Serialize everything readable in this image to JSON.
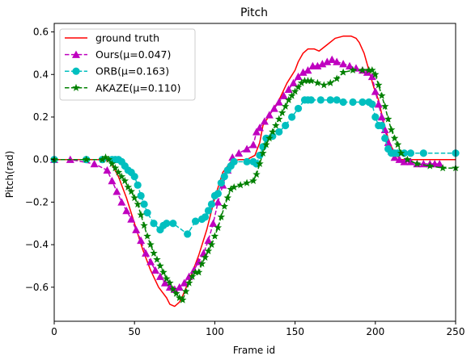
{
  "chart_data": {
    "type": "line",
    "title": "Pitch",
    "xlabel": "Frame id",
    "ylabel": "Pitch(rad)",
    "xlim": [
      0,
      250
    ],
    "ylim": [
      -0.76,
      0.64
    ],
    "xticks": [
      0,
      50,
      100,
      150,
      200,
      250
    ],
    "yticks": [
      -0.6,
      -0.4,
      -0.2,
      0.0,
      0.2,
      0.4,
      0.6
    ],
    "xtick_labels": [
      "0",
      "50",
      "100",
      "150",
      "200",
      "250"
    ],
    "ytick_labels": [
      "−0.6",
      "−0.4",
      "−0.2",
      "0.0",
      "0.2",
      "0.4",
      "0.6"
    ],
    "grid": false,
    "legend_position": "upper-left",
    "series": [
      {
        "name": "ground truth",
        "color": "#ff0000",
        "linestyle": "solid",
        "marker": "none",
        "x": [
          0,
          20,
          30,
          35,
          40,
          45,
          50,
          55,
          60,
          65,
          70,
          72,
          75,
          78,
          80,
          85,
          90,
          95,
          100,
          105,
          110,
          115,
          120,
          125,
          128,
          130,
          135,
          140,
          145,
          150,
          152,
          155,
          158,
          162,
          165,
          170,
          175,
          180,
          185,
          188,
          190,
          193,
          196,
          199,
          202,
          205,
          208,
          210,
          213,
          216,
          220,
          230,
          250
        ],
        "y": [
          0,
          0,
          0,
          -0.01,
          -0.08,
          -0.18,
          -0.3,
          -0.42,
          -0.52,
          -0.6,
          -0.65,
          -0.68,
          -0.69,
          -0.67,
          -0.64,
          -0.55,
          -0.45,
          -0.33,
          -0.18,
          -0.06,
          -0.01,
          0,
          0,
          0.02,
          0.08,
          0.16,
          0.22,
          0.28,
          0.36,
          0.42,
          0.46,
          0.5,
          0.52,
          0.52,
          0.51,
          0.54,
          0.57,
          0.58,
          0.58,
          0.57,
          0.55,
          0.5,
          0.42,
          0.34,
          0.28,
          0.18,
          0.1,
          0.06,
          0.02,
          0,
          0,
          0,
          0
        ]
      },
      {
        "name": "Ours(μ=0.047)",
        "color": "#bf00bf",
        "linestyle": "dashed",
        "marker": "triangle",
        "x": [
          0,
          10,
          25,
          33,
          36,
          39,
          42,
          45,
          48,
          51,
          54,
          57,
          60,
          63,
          66,
          69,
          72,
          75,
          78,
          81,
          84,
          87,
          90,
          93,
          96,
          99,
          102,
          105,
          108,
          111,
          115,
          120,
          124,
          126,
          128,
          131,
          134,
          137,
          140,
          143,
          146,
          149,
          152,
          155,
          158,
          161,
          164,
          167,
          170,
          173,
          176,
          180,
          184,
          188,
          192,
          195,
          198,
          200,
          202,
          204,
          206,
          208,
          210,
          212,
          215,
          218,
          222,
          226,
          230,
          234,
          237,
          240
        ],
        "y": [
          0,
          0,
          -0.02,
          -0.05,
          -0.1,
          -0.15,
          -0.2,
          -0.24,
          -0.28,
          -0.33,
          -0.38,
          -0.44,
          -0.48,
          -0.52,
          -0.55,
          -0.58,
          -0.6,
          -0.61,
          -0.6,
          -0.58,
          -0.55,
          -0.52,
          -0.48,
          -0.44,
          -0.38,
          -0.3,
          -0.2,
          -0.12,
          -0.05,
          0.01,
          0.03,
          0.05,
          0.07,
          0.13,
          0.15,
          0.18,
          0.21,
          0.24,
          0.27,
          0.3,
          0.33,
          0.36,
          0.39,
          0.41,
          0.42,
          0.44,
          0.44,
          0.45,
          0.46,
          0.47,
          0.46,
          0.45,
          0.44,
          0.43,
          0.42,
          0.41,
          0.39,
          0.32,
          0.26,
          0.2,
          0.14,
          0.08,
          0.04,
          0.01,
          0,
          -0.01,
          -0.01,
          -0.02,
          -0.02,
          -0.02,
          -0.02,
          -0.02
        ]
      },
      {
        "name": "ORB(μ=0.163)",
        "color": "#00bfbf",
        "linestyle": "dashed",
        "marker": "circle",
        "x": [
          0,
          20,
          30,
          36,
          38,
          40,
          42,
          44,
          46,
          48,
          50,
          52,
          54,
          56,
          58,
          62,
          66,
          68,
          70,
          74,
          83,
          88,
          92,
          94,
          96,
          98,
          100,
          102,
          104,
          106,
          108,
          110,
          112,
          120,
          124,
          126,
          128,
          130,
          132,
          136,
          140,
          144,
          148,
          152,
          156,
          158,
          160,
          166,
          172,
          176,
          180,
          186,
          192,
          196,
          198,
          200,
          202,
          204,
          206,
          208,
          210,
          212,
          214,
          218,
          222,
          230,
          250
        ],
        "y": [
          0,
          0,
          0,
          0,
          0,
          0,
          -0.01,
          -0.03,
          -0.05,
          -0.06,
          -0.08,
          -0.12,
          -0.17,
          -0.21,
          -0.25,
          -0.3,
          -0.33,
          -0.31,
          -0.3,
          -0.3,
          -0.35,
          -0.29,
          -0.28,
          -0.27,
          -0.24,
          -0.21,
          -0.17,
          -0.16,
          -0.11,
          -0.08,
          -0.05,
          -0.03,
          -0.01,
          -0.01,
          -0.01,
          -0.02,
          0.02,
          0.06,
          0.1,
          0.11,
          0.13,
          0.16,
          0.2,
          0.24,
          0.28,
          0.28,
          0.28,
          0.28,
          0.28,
          0.28,
          0.27,
          0.27,
          0.27,
          0.27,
          0.26,
          0.2,
          0.16,
          0.16,
          0.1,
          0.05,
          0.03,
          0.03,
          0.03,
          0.03,
          0.03,
          0.03,
          0.03
        ]
      },
      {
        "name": "AKAZE(μ=0.110)",
        "color": "#008000",
        "linestyle": "dashed",
        "marker": "star",
        "x": [
          0,
          20,
          30,
          32,
          34,
          36,
          38,
          40,
          42,
          44,
          46,
          48,
          50,
          52,
          54,
          56,
          58,
          60,
          62,
          64,
          66,
          68,
          70,
          72,
          74,
          76,
          78,
          80,
          82,
          84,
          86,
          88,
          90,
          92,
          94,
          96,
          98,
          100,
          102,
          104,
          106,
          108,
          110,
          112,
          116,
          120,
          124,
          126,
          128,
          130,
          132,
          134,
          136,
          138,
          140,
          142,
          144,
          146,
          148,
          150,
          152,
          154,
          156,
          158,
          160,
          164,
          168,
          172,
          176,
          180,
          186,
          192,
          196,
          198,
          200,
          202,
          204,
          206,
          208,
          210,
          212,
          214,
          216,
          220,
          226,
          234,
          242,
          250
        ],
        "y": [
          0,
          0,
          0,
          0.01,
          0,
          -0.02,
          -0.04,
          -0.06,
          -0.08,
          -0.1,
          -0.13,
          -0.15,
          -0.18,
          -0.21,
          -0.26,
          -0.31,
          -0.36,
          -0.4,
          -0.44,
          -0.47,
          -0.5,
          -0.53,
          -0.56,
          -0.58,
          -0.61,
          -0.63,
          -0.65,
          -0.66,
          -0.62,
          -0.58,
          -0.55,
          -0.53,
          -0.53,
          -0.49,
          -0.46,
          -0.43,
          -0.4,
          -0.36,
          -0.32,
          -0.27,
          -0.22,
          -0.18,
          -0.14,
          -0.13,
          -0.12,
          -0.11,
          -0.1,
          -0.07,
          -0.02,
          0.03,
          0.07,
          0.1,
          0.13,
          0.16,
          0.19,
          0.22,
          0.25,
          0.28,
          0.3,
          0.32,
          0.34,
          0.36,
          0.37,
          0.37,
          0.37,
          0.36,
          0.35,
          0.36,
          0.38,
          0.41,
          0.42,
          0.42,
          0.42,
          0.42,
          0.4,
          0.35,
          0.3,
          0.25,
          0.19,
          0.14,
          0.1,
          0.07,
          0.03,
          0,
          -0.02,
          -0.03,
          -0.04,
          -0.04
        ]
      }
    ]
  }
}
